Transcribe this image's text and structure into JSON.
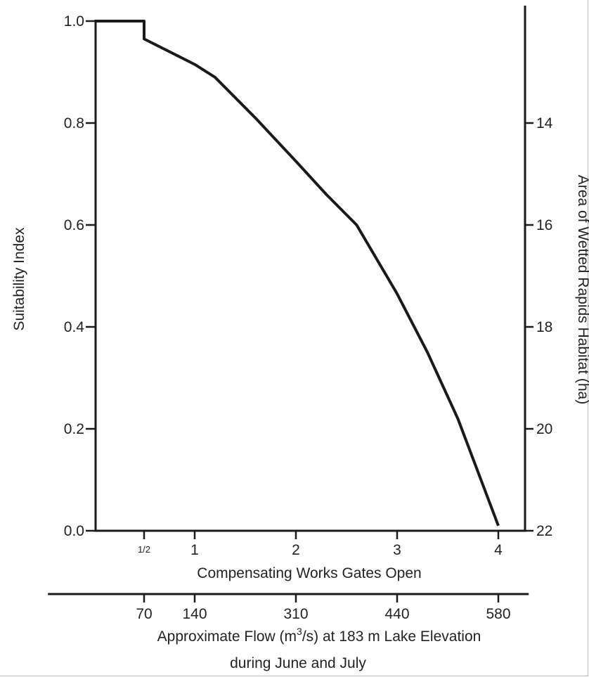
{
  "chart_data": {
    "type": "line",
    "ylabel": "Suitability Index",
    "ylim": [
      0,
      1
    ],
    "y_ticks": [
      "0.0",
      "0.2",
      "0.4",
      "0.6",
      "0.8",
      "1.0"
    ],
    "y_tick_values": [
      0,
      0.2,
      0.4,
      0.6,
      0.8,
      1.0
    ],
    "y2label": "Area of Wetted Rapids Habitat (ha)",
    "y2_ticks": [
      {
        "label": "14",
        "si": 0.8
      },
      {
        "label": "16",
        "si": 0.6
      },
      {
        "label": "18",
        "si": 0.4
      },
      {
        "label": "20",
        "si": 0.2
      },
      {
        "label": "22",
        "si": 0.0
      }
    ],
    "xlabel": "Compensating Works Gates Open",
    "x_ticks": [
      {
        "label": "1/2",
        "value": 0.5,
        "small": true
      },
      {
        "label": "1",
        "value": 1
      },
      {
        "label": "2",
        "value": 2
      },
      {
        "label": "3",
        "value": 3
      },
      {
        "label": "4",
        "value": 4
      }
    ],
    "x2label_parts": [
      "Approximate Flow (m",
      "3",
      "/s) at 183 m Lake Elevation"
    ],
    "x2label_line2": "during June and July",
    "x2_ticks": [
      {
        "label": "70",
        "gates": 0.5
      },
      {
        "label": "140",
        "gates": 1
      },
      {
        "label": "310",
        "gates": 2
      },
      {
        "label": "440",
        "gates": 3
      },
      {
        "label": "580",
        "gates": 4
      }
    ],
    "xlim": [
      -0.45,
      4.3
    ],
    "series": [
      {
        "x": [
          0.02,
          0.5,
          0.5,
          1.0,
          1.2,
          1.6,
          2.0,
          2.3,
          2.6,
          3.0,
          3.3,
          3.6,
          4.0
        ],
        "y": [
          1.0,
          1.0,
          0.965,
          0.915,
          0.89,
          0.81,
          0.725,
          0.66,
          0.6,
          0.465,
          0.35,
          0.22,
          0.01
        ]
      }
    ]
  }
}
